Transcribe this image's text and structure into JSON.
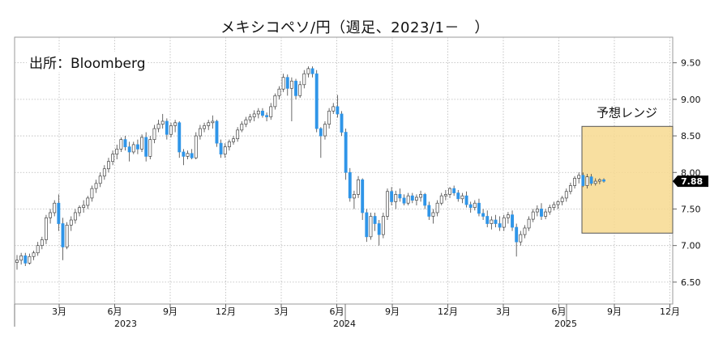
{
  "chart_data": {
    "type": "candlestick",
    "title": "メキシコペソ/円（週足、2023/1－　）",
    "source": "出所：Bloomberg",
    "ylim": [
      6.2,
      9.85
    ],
    "yticks": [
      "6.50",
      "7.00",
      "7.50",
      "8.00",
      "8.50",
      "9.00",
      "9.50"
    ],
    "x_month_ticks": [
      "3月",
      "6月",
      "9月",
      "12月",
      "3月",
      "6月",
      "9月",
      "12月",
      "3月",
      "6月",
      "9月",
      "12月"
    ],
    "x_years": [
      "2023",
      "2024",
      "2025"
    ],
    "last_value": "7.88",
    "forecast_label": "予想レンジ",
    "forecast_range": [
      7.17,
      8.63
    ],
    "grid": true,
    "colors": {
      "up": "#ffffff",
      "down": "#2f95e8",
      "forecast": "#f7d98f",
      "last_label_bg": "#000000"
    },
    "candles": [
      [
        6.77,
        6.87,
        6.67,
        6.8
      ],
      [
        6.8,
        6.9,
        6.74,
        6.86
      ],
      [
        6.86,
        6.9,
        6.72,
        6.76
      ],
      [
        6.76,
        6.89,
        6.74,
        6.85
      ],
      [
        6.85,
        6.93,
        6.8,
        6.9
      ],
      [
        6.9,
        7.05,
        6.86,
        7.0
      ],
      [
        7.0,
        7.12,
        6.95,
        7.08
      ],
      [
        7.08,
        7.42,
        7.02,
        7.38
      ],
      [
        7.38,
        7.5,
        7.3,
        7.45
      ],
      [
        7.45,
        7.62,
        7.4,
        7.58
      ],
      [
        7.58,
        7.7,
        7.2,
        7.3
      ],
      [
        7.3,
        7.38,
        6.8,
        6.98
      ],
      [
        6.98,
        7.32,
        6.95,
        7.28
      ],
      [
        7.28,
        7.4,
        7.2,
        7.35
      ],
      [
        7.35,
        7.5,
        7.3,
        7.45
      ],
      [
        7.45,
        7.55,
        7.4,
        7.52
      ],
      [
        7.52,
        7.62,
        7.45,
        7.55
      ],
      [
        7.55,
        7.68,
        7.5,
        7.65
      ],
      [
        7.65,
        7.82,
        7.6,
        7.78
      ],
      [
        7.78,
        7.9,
        7.72,
        7.85
      ],
      [
        7.85,
        8.0,
        7.8,
        7.95
      ],
      [
        7.95,
        8.1,
        7.9,
        8.05
      ],
      [
        8.05,
        8.2,
        8.0,
        8.15
      ],
      [
        8.15,
        8.3,
        8.1,
        8.25
      ],
      [
        8.25,
        8.38,
        8.18,
        8.32
      ],
      [
        8.32,
        8.48,
        8.28,
        8.45
      ],
      [
        8.45,
        8.5,
        8.3,
        8.35
      ],
      [
        8.35,
        8.42,
        8.15,
        8.28
      ],
      [
        8.28,
        8.42,
        8.25,
        8.38
      ],
      [
        8.38,
        8.45,
        8.25,
        8.32
      ],
      [
        8.32,
        8.52,
        8.28,
        8.48
      ],
      [
        8.48,
        8.55,
        8.15,
        8.22
      ],
      [
        8.22,
        8.5,
        8.18,
        8.45
      ],
      [
        8.45,
        8.65,
        8.4,
        8.6
      ],
      [
        8.6,
        8.72,
        8.55,
        8.66
      ],
      [
        8.66,
        8.8,
        8.6,
        8.7
      ],
      [
        8.7,
        8.74,
        8.45,
        8.52
      ],
      [
        8.52,
        8.68,
        8.48,
        8.64
      ],
      [
        8.64,
        8.72,
        8.55,
        8.68
      ],
      [
        8.68,
        8.7,
        8.2,
        8.28
      ],
      [
        8.28,
        8.32,
        8.1,
        8.22
      ],
      [
        8.22,
        8.3,
        8.18,
        8.26
      ],
      [
        8.26,
        8.32,
        8.18,
        8.2
      ],
      [
        8.2,
        8.55,
        8.18,
        8.5
      ],
      [
        8.5,
        8.65,
        8.45,
        8.6
      ],
      [
        8.6,
        8.68,
        8.55,
        8.64
      ],
      [
        8.64,
        8.72,
        8.58,
        8.68
      ],
      [
        8.68,
        8.78,
        8.6,
        8.7
      ],
      [
        8.7,
        8.72,
        8.35,
        8.4
      ],
      [
        8.4,
        8.45,
        8.2,
        8.25
      ],
      [
        8.25,
        8.4,
        8.2,
        8.35
      ],
      [
        8.35,
        8.45,
        8.3,
        8.42
      ],
      [
        8.42,
        8.5,
        8.38,
        8.46
      ],
      [
        8.46,
        8.62,
        8.42,
        8.58
      ],
      [
        8.58,
        8.7,
        8.55,
        8.66
      ],
      [
        8.66,
        8.76,
        8.62,
        8.72
      ],
      [
        8.72,
        8.8,
        8.68,
        8.76
      ],
      [
        8.76,
        8.85,
        8.7,
        8.8
      ],
      [
        8.8,
        8.88,
        8.74,
        8.84
      ],
      [
        8.84,
        8.88,
        8.75,
        8.78
      ],
      [
        8.78,
        8.82,
        8.7,
        8.76
      ],
      [
        8.76,
        8.95,
        8.72,
        8.9
      ],
      [
        8.9,
        9.08,
        8.86,
        9.05
      ],
      [
        9.05,
        9.18,
        9.0,
        9.14
      ],
      [
        9.14,
        9.35,
        9.1,
        9.3
      ],
      [
        9.3,
        9.34,
        9.05,
        9.15
      ],
      [
        9.15,
        9.3,
        8.7,
        9.25
      ],
      [
        9.25,
        9.28,
        9.0,
        9.05
      ],
      [
        9.05,
        9.25,
        9.02,
        9.2
      ],
      [
        9.2,
        9.4,
        9.15,
        9.35
      ],
      [
        9.35,
        9.45,
        9.3,
        9.42
      ],
      [
        9.42,
        9.45,
        9.3,
        9.35
      ],
      [
        9.35,
        9.4,
        8.55,
        8.6
      ],
      [
        8.6,
        8.62,
        8.2,
        8.5
      ],
      [
        8.5,
        8.7,
        8.45,
        8.66
      ],
      [
        8.66,
        8.88,
        8.6,
        8.84
      ],
      [
        8.84,
        8.95,
        8.8,
        8.9
      ],
      [
        8.9,
        9.06,
        8.75,
        8.8
      ],
      [
        8.8,
        8.84,
        8.5,
        8.55
      ],
      [
        8.55,
        8.6,
        7.9,
        8.0
      ],
      [
        8.0,
        8.06,
        7.6,
        7.65
      ],
      [
        7.65,
        7.75,
        7.5,
        7.7
      ],
      [
        7.7,
        7.95,
        7.65,
        7.9
      ],
      [
        7.9,
        7.92,
        7.35,
        7.45
      ],
      [
        7.45,
        7.5,
        7.05,
        7.12
      ],
      [
        7.12,
        7.45,
        7.08,
        7.4
      ],
      [
        7.4,
        7.45,
        7.2,
        7.3
      ],
      [
        7.3,
        7.35,
        7.0,
        7.15
      ],
      [
        7.15,
        7.45,
        7.1,
        7.4
      ],
      [
        7.4,
        7.78,
        7.35,
        7.74
      ],
      [
        7.74,
        7.8,
        7.55,
        7.6
      ],
      [
        7.6,
        7.75,
        7.5,
        7.7
      ],
      [
        7.7,
        7.78,
        7.6,
        7.65
      ],
      [
        7.65,
        7.7,
        7.55,
        7.58
      ],
      [
        7.58,
        7.72,
        7.55,
        7.68
      ],
      [
        7.68,
        7.72,
        7.58,
        7.62
      ],
      [
        7.62,
        7.7,
        7.55,
        7.66
      ],
      [
        7.66,
        7.75,
        7.6,
        7.7
      ],
      [
        7.7,
        7.72,
        7.5,
        7.55
      ],
      [
        7.55,
        7.6,
        7.35,
        7.4
      ],
      [
        7.4,
        7.5,
        7.3,
        7.45
      ],
      [
        7.45,
        7.62,
        7.4,
        7.58
      ],
      [
        7.58,
        7.72,
        7.55,
        7.68
      ],
      [
        7.68,
        7.76,
        7.62,
        7.7
      ],
      [
        7.7,
        7.8,
        7.65,
        7.78
      ],
      [
        7.78,
        7.82,
        7.68,
        7.72
      ],
      [
        7.72,
        7.76,
        7.6,
        7.64
      ],
      [
        7.64,
        7.72,
        7.58,
        7.68
      ],
      [
        7.68,
        7.74,
        7.52,
        7.56
      ],
      [
        7.56,
        7.6,
        7.45,
        7.52
      ],
      [
        7.52,
        7.62,
        7.48,
        7.58
      ],
      [
        7.58,
        7.64,
        7.4,
        7.44
      ],
      [
        7.44,
        7.5,
        7.35,
        7.4
      ],
      [
        7.4,
        7.48,
        7.25,
        7.3
      ],
      [
        7.3,
        7.4,
        7.22,
        7.35
      ],
      [
        7.35,
        7.42,
        7.25,
        7.3
      ],
      [
        7.3,
        7.4,
        7.2,
        7.25
      ],
      [
        7.25,
        7.42,
        7.2,
        7.38
      ],
      [
        7.38,
        7.46,
        7.3,
        7.42
      ],
      [
        7.42,
        7.48,
        7.2,
        7.25
      ],
      [
        7.25,
        7.3,
        6.85,
        7.05
      ],
      [
        7.05,
        7.2,
        7.0,
        7.15
      ],
      [
        7.15,
        7.28,
        7.1,
        7.24
      ],
      [
        7.24,
        7.4,
        7.2,
        7.36
      ],
      [
        7.36,
        7.5,
        7.32,
        7.46
      ],
      [
        7.46,
        7.55,
        7.4,
        7.5
      ],
      [
        7.5,
        7.58,
        7.35,
        7.4
      ],
      [
        7.4,
        7.5,
        7.36,
        7.46
      ],
      [
        7.46,
        7.56,
        7.42,
        7.52
      ],
      [
        7.52,
        7.6,
        7.48,
        7.56
      ],
      [
        7.56,
        7.62,
        7.5,
        7.6
      ],
      [
        7.6,
        7.68,
        7.55,
        7.65
      ],
      [
        7.65,
        7.78,
        7.6,
        7.74
      ],
      [
        7.74,
        7.86,
        7.7,
        7.82
      ],
      [
        7.82,
        7.95,
        7.78,
        7.92
      ],
      [
        7.92,
        8.0,
        7.85,
        7.96
      ],
      [
        7.96,
        8.0,
        7.8,
        7.82
      ],
      [
        7.82,
        7.98,
        7.78,
        7.94
      ],
      [
        7.94,
        7.98,
        7.82,
        7.85
      ],
      [
        7.85,
        7.92,
        7.82,
        7.88
      ],
      [
        7.88,
        7.92,
        7.84,
        7.9
      ],
      [
        7.9,
        7.92,
        7.86,
        7.88
      ]
    ]
  }
}
